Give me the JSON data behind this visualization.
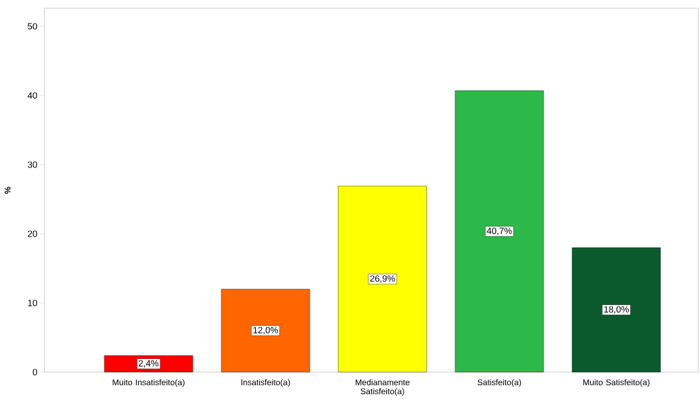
{
  "chart_data": {
    "type": "bar",
    "categories": [
      "Muito Insatisfeito(a)",
      "Insatisfeito(a)",
      "Medianamente Satisfeito(a)",
      "Satisfeito(a)",
      "Muito Satisfeito(a)"
    ],
    "values": [
      2.4,
      12.0,
      26.9,
      40.7,
      18.0
    ],
    "value_labels": [
      "2,4%",
      "12,0%",
      "26,9%",
      "40,7%",
      "18,0%"
    ],
    "colors": [
      "#ff0000",
      "#ff6600",
      "#ffff00",
      "#2db84a",
      "#0b5a2e"
    ],
    "ylabel": "%",
    "ylim": [
      0,
      52.6
    ],
    "yticks": [
      0,
      10,
      20,
      30,
      40,
      50
    ],
    "grid": false
  }
}
